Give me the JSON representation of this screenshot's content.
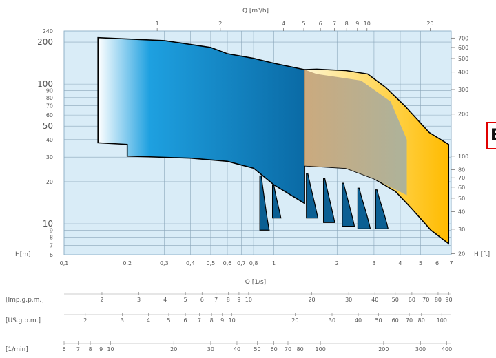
{
  "chart_data": {
    "type": "area",
    "title": "",
    "grid": true,
    "x_axis": {
      "label": "Q [1/s]",
      "scale": "log",
      "range": [
        0.1,
        7
      ],
      "ticks": [
        {
          "v": 0.1,
          "t": "0,1"
        },
        {
          "v": 0.2,
          "t": "0,2"
        },
        {
          "v": 0.3,
          "t": "0,3"
        },
        {
          "v": 0.4,
          "t": "0,4"
        },
        {
          "v": 0.5,
          "t": "0,5"
        },
        {
          "v": 0.6,
          "t": "0,6"
        },
        {
          "v": 0.7,
          "t": "0,7"
        },
        {
          "v": 0.8,
          "t": "0,8"
        },
        {
          "v": 1,
          "t": "1"
        },
        {
          "v": 2,
          "t": "2"
        },
        {
          "v": 3,
          "t": "3"
        },
        {
          "v": 4,
          "t": "4"
        },
        {
          "v": 5,
          "t": "5"
        },
        {
          "v": 6,
          "t": "6"
        },
        {
          "v": 7,
          "t": "7"
        }
      ]
    },
    "x_axis_top": {
      "label": "Q [m³/h]",
      "scale": "log",
      "ticks": [
        {
          "v": 1,
          "t": "1"
        },
        {
          "v": 2,
          "t": "2"
        },
        {
          "v": 4,
          "t": "4"
        },
        {
          "v": 5,
          "t": "5"
        },
        {
          "v": 6,
          "t": "6"
        },
        {
          "v": 7,
          "t": "7"
        },
        {
          "v": 8,
          "t": "8"
        },
        {
          "v": 9,
          "t": "9"
        },
        {
          "v": 10,
          "t": "10"
        },
        {
          "v": 20,
          "t": "20"
        }
      ]
    },
    "y_axis_left": {
      "label": "H[m]",
      "scale": "log",
      "range": [
        6,
        240
      ],
      "ticks": [
        {
          "v": 6,
          "t": "6"
        },
        {
          "v": 7,
          "t": "7"
        },
        {
          "v": 8,
          "t": "8"
        },
        {
          "v": 9,
          "t": "9"
        },
        {
          "v": 10,
          "t": "10"
        },
        {
          "v": 20,
          "t": "20"
        },
        {
          "v": 30,
          "t": "30"
        },
        {
          "v": 40,
          "t": "40"
        },
        {
          "v": 50,
          "t": "50"
        },
        {
          "v": 60,
          "t": "60"
        },
        {
          "v": 70,
          "t": "70"
        },
        {
          "v": 80,
          "t": "80"
        },
        {
          "v": 90,
          "t": "90"
        },
        {
          "v": 100,
          "t": "100"
        },
        {
          "v": 200,
          "t": "200"
        },
        {
          "v": 240,
          "t": "240"
        }
      ]
    },
    "y_axis_right": {
      "label": "H [ft]",
      "scale": "log",
      "ticks": [
        "20",
        "30",
        "40",
        "50",
        "60",
        "70",
        "80",
        "100",
        "200",
        "300",
        "400",
        "500",
        "600",
        "700"
      ]
    },
    "extra_scales": [
      {
        "label": "[Imp.g.p.m.]",
        "ticks": [
          "2",
          "3",
          "4",
          "5",
          "6",
          "7",
          "8",
          "9",
          "10",
          "20",
          "30",
          "40",
          "50",
          "60",
          "70",
          "80",
          "90"
        ]
      },
      {
        "label": "[US.g.p.m.]",
        "ticks": [
          "2",
          "3",
          "4",
          "5",
          "6",
          "7",
          "8",
          "9",
          "10",
          "20",
          "30",
          "40",
          "50",
          "60",
          "70",
          "80",
          "100"
        ]
      },
      {
        "label": "[1/min]",
        "ticks": [
          "6",
          "7",
          "8",
          "9",
          "10",
          "20",
          "30",
          "40",
          "50",
          "60",
          "70",
          "80",
          "100",
          "200",
          "300",
          "400"
        ]
      }
    ],
    "series": [
      {
        "color_from": "#ffffff",
        "color_to": "#1e7fc0",
        "top": [
          [
            0.145,
            215
          ],
          [
            0.3,
            205
          ],
          [
            0.5,
            183
          ],
          [
            0.6,
            165
          ],
          [
            0.8,
            153
          ],
          [
            1.0,
            141
          ],
          [
            1.4,
            127
          ]
        ],
        "bottom": [
          [
            0.145,
            38
          ],
          [
            0.2,
            37
          ],
          [
            0.2,
            30.5
          ],
          [
            0.4,
            29.5
          ],
          [
            0.6,
            28
          ],
          [
            0.8,
            25
          ],
          [
            1.0,
            19
          ],
          [
            1.4,
            14
          ]
        ],
        "end_curves": [
          {
            "x": [
              0.87,
              0.95
            ],
            "h": [
              22,
              9
            ]
          },
          {
            "x": [
              1.0,
              1.08
            ],
            "h": [
              19,
              11
            ]
          },
          {
            "x": [
              1.45,
              1.62
            ],
            "h": [
              23,
              11
            ]
          },
          {
            "x": [
              1.75,
              1.95
            ],
            "h": [
              21,
              10.2
            ]
          },
          {
            "x": [
              2.15,
              2.42
            ],
            "h": [
              19.5,
              9.6
            ]
          },
          {
            "x": [
              2.55,
              2.88
            ],
            "h": [
              18,
              9.2
            ]
          },
          {
            "x": [
              3.1,
              3.5
            ],
            "h": [
              17.5,
              9.2
            ]
          }
        ]
      },
      {
        "color_from": "#fff8d8",
        "color_to": "#ffc000",
        "top": [
          [
            1.4,
            127
          ],
          [
            1.6,
            128
          ],
          [
            2.2,
            125
          ],
          [
            2.8,
            118
          ],
          [
            3.4,
            95
          ],
          [
            4.2,
            70
          ],
          [
            5.5,
            45
          ],
          [
            6.8,
            37
          ]
        ],
        "bottom": [
          [
            1.4,
            26
          ],
          [
            2.2,
            25
          ],
          [
            3.0,
            21
          ],
          [
            3.8,
            17
          ],
          [
            4.5,
            13
          ],
          [
            5.6,
            9
          ],
          [
            6.8,
            7.2
          ]
        ]
      }
    ]
  }
}
